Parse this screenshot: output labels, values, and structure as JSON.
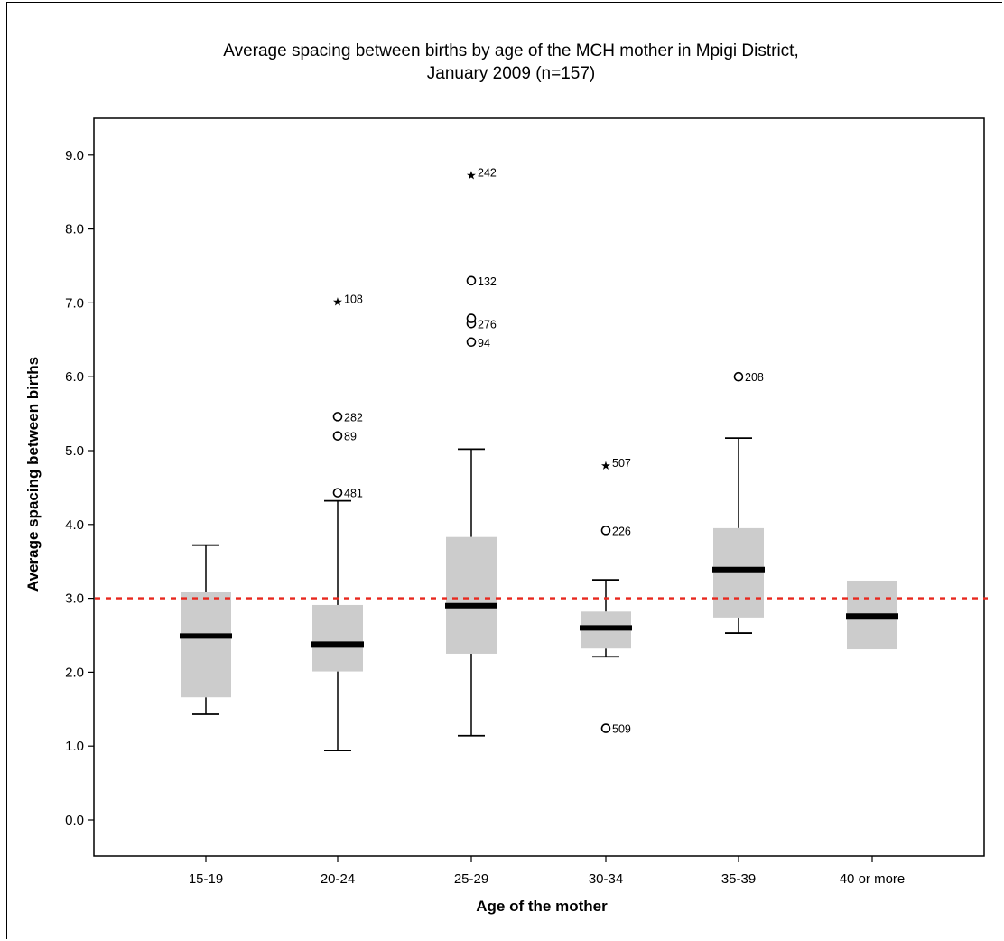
{
  "chart_data": {
    "type": "boxplot",
    "title_line1": "Average spacing between births by age of the MCH mother in Mpigi District,",
    "title_line2": "January 2009 (n=157)",
    "xlabel": "Age of the mother",
    "ylabel": "Average spacing between births",
    "ylim": [
      -0.5,
      9.5
    ],
    "yticks": [
      "0.0",
      "1.0",
      "2.0",
      "3.0",
      "4.0",
      "5.0",
      "6.0",
      "7.0",
      "8.0",
      "9.0"
    ],
    "reference_line": {
      "value": 3.0,
      "color": "#e8281e",
      "style": "dashed"
    },
    "box_color": "#cccccc",
    "categories": [
      "15-19",
      "20-24",
      "25-29",
      "30-34",
      "35-39",
      "40 or more"
    ],
    "boxes": [
      {
        "category": "15-19",
        "whisker_low": 1.43,
        "q1": 1.66,
        "median": 2.49,
        "q3": 3.09,
        "whisker_high": 3.72,
        "outliers": []
      },
      {
        "category": "20-24",
        "whisker_low": 0.94,
        "q1": 2.01,
        "median": 2.38,
        "q3": 2.91,
        "whisker_high": 4.32,
        "outliers": [
          {
            "value": 4.43,
            "label": "481",
            "marker": "circle"
          },
          {
            "value": 5.2,
            "label": "89",
            "marker": "circle"
          },
          {
            "value": 5.46,
            "label": "282",
            "marker": "circle"
          },
          {
            "value": 7.06,
            "label": "108",
            "marker": "star"
          }
        ]
      },
      {
        "category": "25-29",
        "whisker_low": 1.14,
        "q1": 2.25,
        "median": 2.9,
        "q3": 3.83,
        "whisker_high": 5.02,
        "outliers": [
          {
            "value": 6.47,
            "label": "94",
            "marker": "circle"
          },
          {
            "value": 6.72,
            "label": "276",
            "marker": "circle"
          },
          {
            "value": 6.79,
            "label": "",
            "marker": "circle"
          },
          {
            "value": 7.3,
            "label": "132",
            "marker": "circle"
          },
          {
            "value": 8.77,
            "label": "242",
            "marker": "star"
          }
        ]
      },
      {
        "category": "30-34",
        "whisker_low": 2.21,
        "q1": 2.32,
        "median": 2.6,
        "q3": 2.82,
        "whisker_high": 3.25,
        "outliers": [
          {
            "value": 1.24,
            "label": "509",
            "marker": "circle"
          },
          {
            "value": 3.92,
            "label": "226",
            "marker": "circle"
          },
          {
            "value": 4.84,
            "label": "507",
            "marker": "star"
          }
        ]
      },
      {
        "category": "35-39",
        "whisker_low": 2.53,
        "q1": 2.74,
        "median": 3.39,
        "q3": 3.95,
        "whisker_high": 5.17,
        "outliers": [
          {
            "value": 6.0,
            "label": "208",
            "marker": "circle"
          }
        ]
      },
      {
        "category": "40 or more",
        "whisker_low": null,
        "q1": 2.31,
        "median": 2.76,
        "q3": 3.24,
        "whisker_high": null,
        "outliers": []
      }
    ]
  }
}
